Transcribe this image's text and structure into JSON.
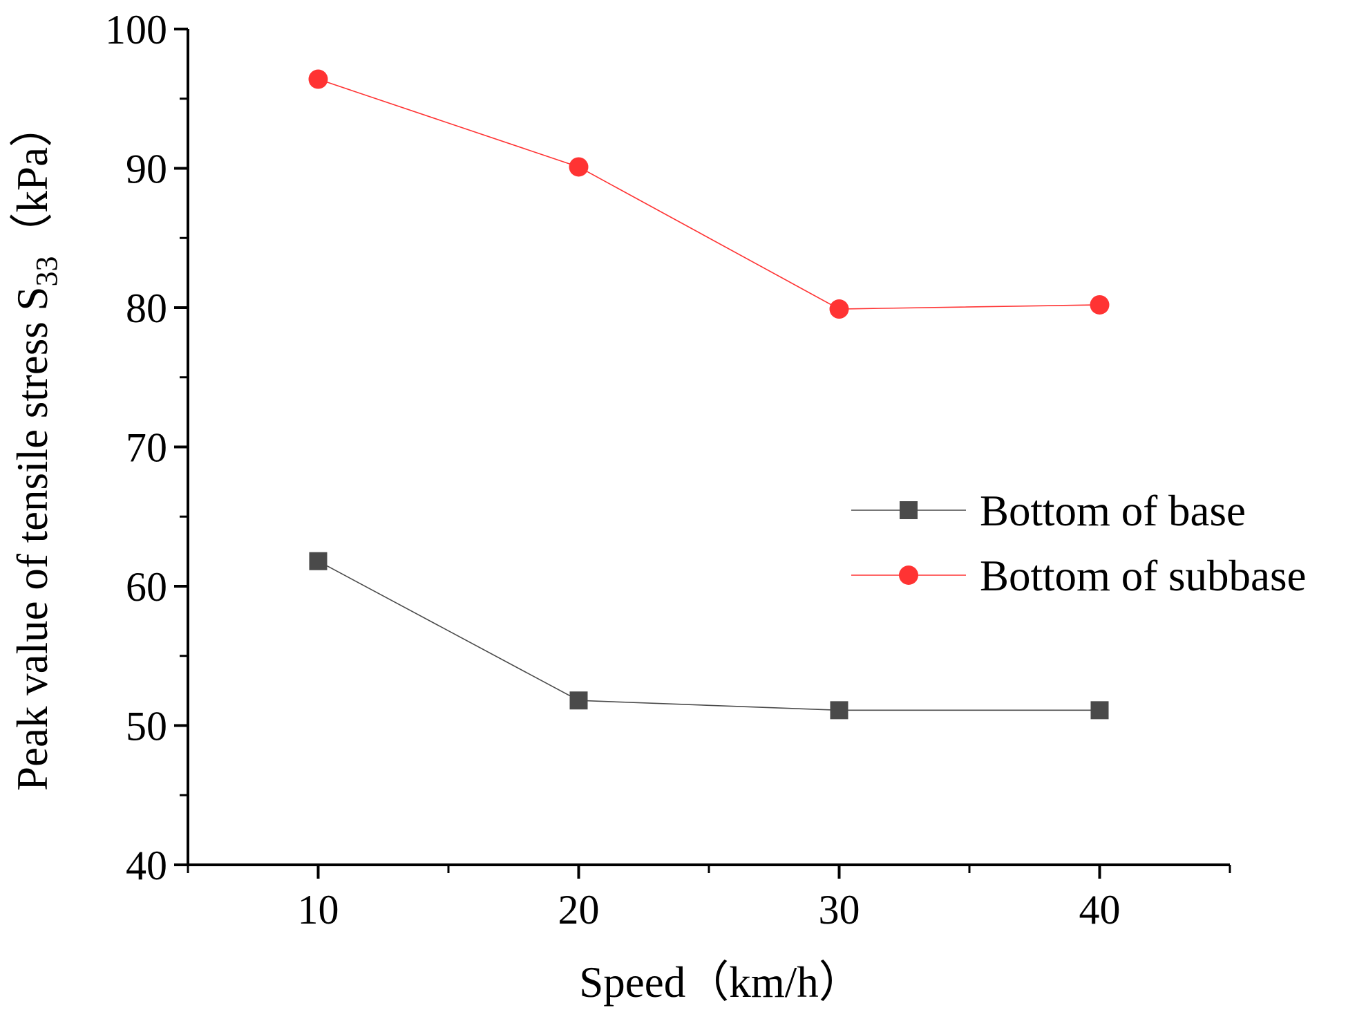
{
  "chart_data": {
    "type": "line",
    "title": "",
    "xlabel": "Speed（km/h）",
    "ylabel": {
      "main": "Peak value of tensile stress S",
      "subscript": "33",
      "unit": "（kPa）"
    },
    "xlim": [
      5,
      45
    ],
    "ylim": [
      40,
      100
    ],
    "x_ticks": [
      10,
      20,
      30,
      40
    ],
    "x_tick_labels": [
      "10",
      "20",
      "30",
      "40"
    ],
    "x_minor_ticks": [
      5,
      15,
      25,
      35,
      45
    ],
    "y_ticks": [
      40,
      50,
      60,
      70,
      80,
      90,
      100
    ],
    "y_tick_labels": [
      "40",
      "50",
      "60",
      "70",
      "80",
      "90",
      "100"
    ],
    "y_minor_ticks": [
      45,
      55,
      65,
      75,
      85,
      95
    ],
    "grid": false,
    "legend_position": "right-middle",
    "x": [
      10,
      20,
      30,
      40
    ],
    "series": [
      {
        "name": "Bottom of base",
        "values": [
          61.8,
          51.8,
          51.1,
          51.1
        ],
        "color": "#4a4a4a",
        "marker": "square"
      },
      {
        "name": "Bottom of subbase",
        "values": [
          96.4,
          90.1,
          79.9,
          80.2
        ],
        "color": "#ff3333",
        "marker": "circle"
      }
    ]
  }
}
